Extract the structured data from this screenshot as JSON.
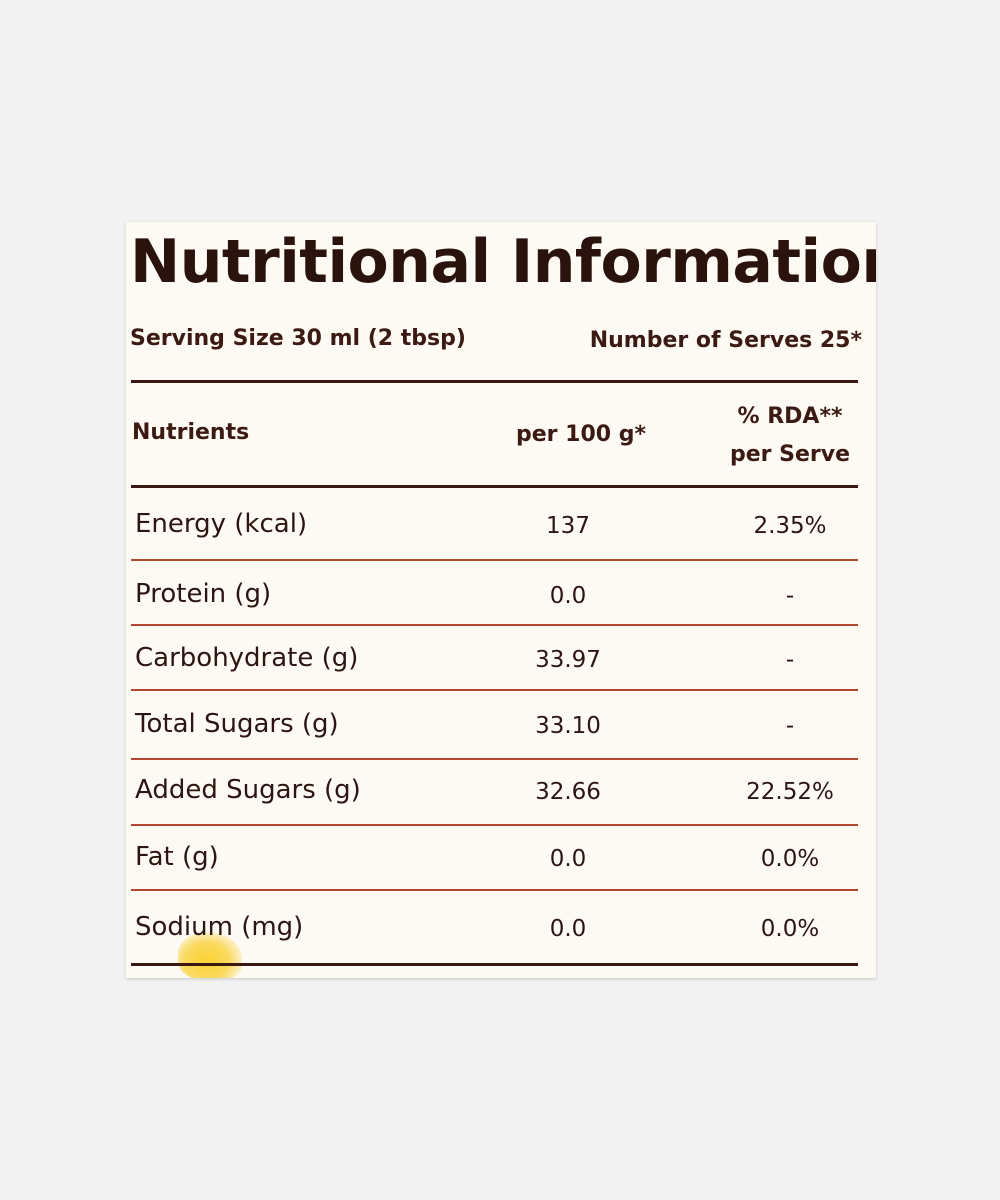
{
  "title": "Nutritional Information",
  "serving_size": "Serving Size 30 ml (2 tbsp)",
  "number_of_serves": "Number of Serves 25*",
  "headers": {
    "nutrients": "Nutrients",
    "per_100g": "per 100 g*",
    "rda_line1": "% RDA**",
    "rda_line2": "per Serve"
  },
  "rows": [
    {
      "name": "Energy (kcal)",
      "per_100g": "137",
      "rda": "2.35%"
    },
    {
      "name": "Protein (g)",
      "per_100g": "0.0",
      "rda": "-"
    },
    {
      "name": "Carbohydrate (g)",
      "per_100g": "33.97",
      "rda": "-"
    },
    {
      "name": "Total Sugars (g)",
      "per_100g": "33.10",
      "rda": "-"
    },
    {
      "name": "Added Sugars (g)",
      "per_100g": "32.66",
      "rda": "22.52%"
    },
    {
      "name": "Fat (g)",
      "per_100g": "0.0",
      "rda": "0.0%"
    },
    {
      "name": "Sodium (mg)",
      "per_100g": "0.0",
      "rda": "0.0%"
    }
  ],
  "colors": {
    "text": "#2d1611",
    "label_background": "#fdfaf3",
    "row_divider": "#b4472f",
    "thick_rule": "#3a1712"
  }
}
